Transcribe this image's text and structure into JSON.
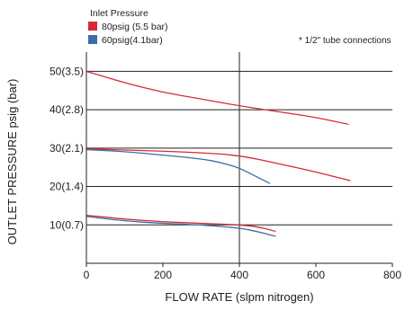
{
  "chart_data": {
    "type": "line",
    "xlabel": "FLOW RATE (slpm nitrogen)",
    "ylabel": "OUTLET PRESSURE psig (bar)",
    "xlim": [
      0,
      800
    ],
    "ylim": [
      0,
      55
    ],
    "x_ticks": [
      0,
      200,
      400,
      600,
      800
    ],
    "x_tick_labels": [
      "0",
      "200",
      "400",
      "600",
      "800"
    ],
    "y_ticks": [
      10,
      20,
      30,
      40,
      50
    ],
    "y_tick_labels": [
      "10(0.7)",
      "20(1.4)",
      "30(2.1)",
      "40(2.8)",
      "50(3.5)"
    ],
    "grid": "horizontal",
    "legend": {
      "title": "Inlet Pressure",
      "position": "top-left",
      "entries": [
        {
          "label": "80psig (5.5 bar)",
          "color": "#d62a36"
        },
        {
          "label": "60psig(4.1bar)",
          "color": "#3a6ea5"
        }
      ]
    },
    "annotation": "* 1/2\" tube connections",
    "series": [
      {
        "group": "80psig (5.5 bar)",
        "color": "#d62a36",
        "points": [
          [
            0,
            50
          ],
          [
            100,
            47
          ],
          [
            200,
            44.5
          ],
          [
            300,
            42.8
          ],
          [
            400,
            41
          ],
          [
            500,
            39.5
          ],
          [
            600,
            38
          ],
          [
            685,
            36.2
          ]
        ]
      },
      {
        "group": "80psig (5.5 bar)",
        "color": "#d62a36",
        "points": [
          [
            0,
            29.8
          ],
          [
            100,
            29.5
          ],
          [
            200,
            29.2
          ],
          [
            300,
            28.8
          ],
          [
            400,
            28.1
          ],
          [
            500,
            26
          ],
          [
            600,
            23.8
          ],
          [
            690,
            21.5
          ]
        ]
      },
      {
        "group": "80psig (5.5 bar)",
        "color": "#d62a36",
        "points": [
          [
            0,
            12.5
          ],
          [
            100,
            11.5
          ],
          [
            200,
            10.8
          ],
          [
            300,
            10.4
          ],
          [
            400,
            10
          ],
          [
            450,
            9.5
          ],
          [
            495,
            8.3
          ]
        ]
      },
      {
        "group": "60psig(4.1bar)",
        "color": "#3a6ea5",
        "points": [
          [
            0,
            29.6
          ],
          [
            100,
            29.1
          ],
          [
            200,
            28.2
          ],
          [
            300,
            27.2
          ],
          [
            350,
            26.3
          ],
          [
            400,
            24.8
          ],
          [
            440,
            22.8
          ],
          [
            480,
            20.8
          ]
        ]
      },
      {
        "group": "60psig(4.1bar)",
        "color": "#3a6ea5",
        "points": [
          [
            0,
            12.2
          ],
          [
            100,
            11
          ],
          [
            200,
            10.4
          ],
          [
            300,
            10
          ],
          [
            400,
            9.2
          ],
          [
            450,
            8.2
          ],
          [
            495,
            7
          ]
        ]
      }
    ]
  }
}
